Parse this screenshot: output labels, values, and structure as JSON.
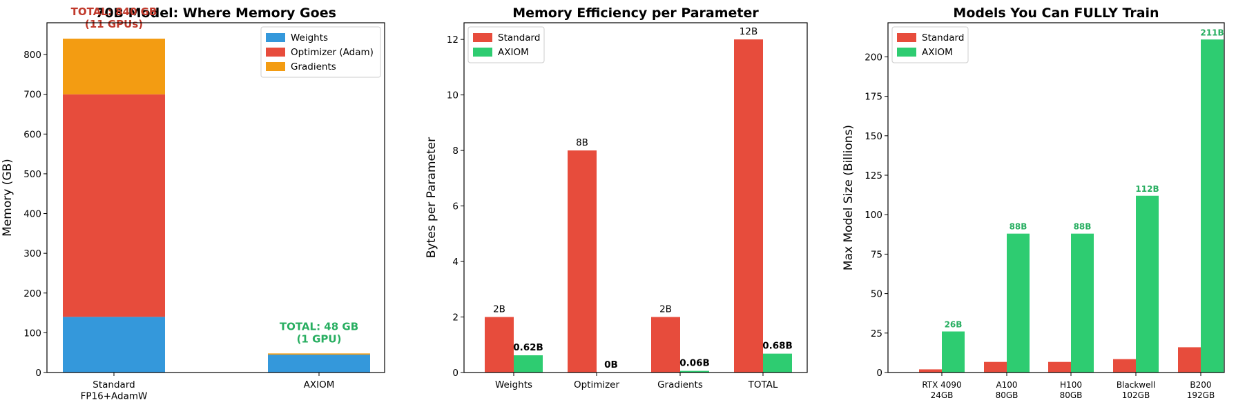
{
  "colors": {
    "weights": "#3498db",
    "optimizer": "#e74c3c",
    "gradients": "#f39c12",
    "standard": "#e74c3c",
    "axiom": "#2ecc71",
    "axiom_text": "#27ae60",
    "standard_text": "#c0392b"
  },
  "chart_data": [
    {
      "type": "bar",
      "stacked": true,
      "title": "70B Model: Where Memory Goes",
      "xlabel": "",
      "ylabel": "Memory (GB)",
      "ylim": [
        0,
        880
      ],
      "yticks": [
        0,
        100,
        200,
        300,
        400,
        500,
        600,
        700,
        800
      ],
      "categories": [
        "Standard\nFP16+AdamW",
        "AXIOM"
      ],
      "series": [
        {
          "name": "Weights",
          "values": [
            140,
            45
          ]
        },
        {
          "name": "Optimizer (Adam)",
          "values": [
            560,
            0
          ]
        },
        {
          "name": "Gradients",
          "values": [
            140,
            3
          ]
        }
      ],
      "annotations": [
        {
          "lines": [
            "TOTAL: 840 GB",
            "(11 GPUs)"
          ],
          "category": 0,
          "value": 840
        },
        {
          "lines": [
            "TOTAL: 48 GB",
            "(1 GPU)"
          ],
          "category": 1,
          "value": 48
        }
      ],
      "legend": "top-right"
    },
    {
      "type": "bar",
      "title": "Memory Efficiency per Parameter",
      "xlabel": "",
      "ylabel": "Bytes per Parameter",
      "ylim": [
        0,
        12.6
      ],
      "yticks": [
        0,
        2,
        4,
        6,
        8,
        10,
        12
      ],
      "categories": [
        "Weights",
        "Optimizer",
        "Gradients",
        "TOTAL"
      ],
      "series": [
        {
          "name": "Standard",
          "values": [
            2,
            8,
            2,
            12
          ],
          "labels": [
            "2B",
            "8B",
            "2B",
            "12B"
          ]
        },
        {
          "name": "AXIOM",
          "values": [
            0.62,
            0.0,
            0.06,
            0.68
          ],
          "labels": [
            "0.62B",
            "0B",
            "0.06B",
            "0.68B"
          ]
        }
      ],
      "legend": "top-left"
    },
    {
      "type": "bar",
      "title": "Models You Can FULLY Train",
      "xlabel": "",
      "ylabel": "Max Model Size (Billions)",
      "ylim": [
        0,
        221.6
      ],
      "yticks": [
        0,
        25,
        50,
        75,
        100,
        125,
        150,
        175,
        200
      ],
      "categories": [
        "RTX 4090\n24GB",
        "A100\n80GB",
        "H100\n80GB",
        "Blackwell\n102GB",
        "B200\n192GB"
      ],
      "series": [
        {
          "name": "Standard",
          "values": [
            2,
            6.7,
            6.7,
            8.5,
            16
          ]
        },
        {
          "name": "AXIOM",
          "values": [
            26,
            88,
            88,
            112,
            211
          ],
          "labels": [
            "26B",
            "88B",
            "88B",
            "112B",
            "211B"
          ]
        }
      ],
      "legend": "top-left"
    }
  ]
}
